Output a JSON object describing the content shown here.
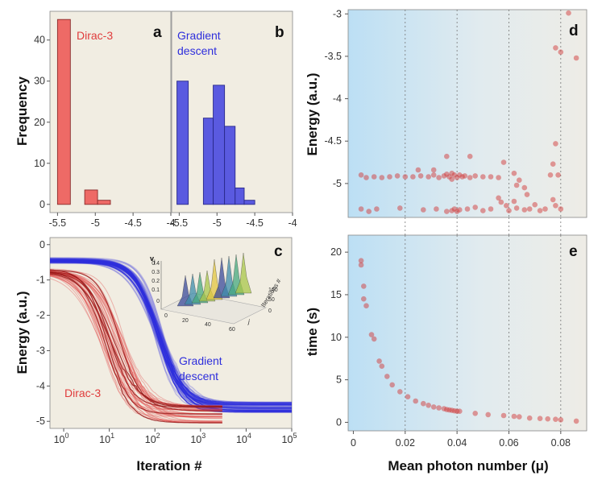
{
  "colors": {
    "dirac": "#e03c3c",
    "dirac_fill": "#ee6a66",
    "gradient": "#2e2edc",
    "gradient_fill": "#5a5ae0",
    "panel_bg": "#f1ede2",
    "scatter": "#d23c3c"
  },
  "chart_data": [
    {
      "panel": "a",
      "type": "bar",
      "title": "",
      "annotation": "Dirac-3",
      "xlabel": "",
      "ylabel": "Frequency",
      "xlim": [
        -5.6,
        -4.0
      ],
      "ylim": [
        -2,
        47
      ],
      "xticks": [
        "-5.5",
        "-5",
        "-4.5",
        "-4"
      ],
      "yticks": [
        "0",
        "10",
        "20",
        "30",
        "40"
      ],
      "bins": [
        {
          "x0": -5.5,
          "x1": -5.33,
          "count": 45
        },
        {
          "x0": -5.14,
          "x1": -4.97,
          "count": 3.5
        },
        {
          "x0": -4.97,
          "x1": -4.8,
          "count": 1
        }
      ]
    },
    {
      "panel": "b",
      "type": "bar",
      "annotation": [
        "Gradient",
        "descent"
      ],
      "xlim": [
        -5.6,
        -4.0
      ],
      "ylim": [
        -2,
        47
      ],
      "xticks": [
        "-5.5",
        "-5",
        "-4.5",
        "-4"
      ],
      "bins": [
        {
          "x0": -5.53,
          "x1": -5.38,
          "count": 30
        },
        {
          "x0": -5.18,
          "x1": -5.05,
          "count": 21
        },
        {
          "x0": -5.05,
          "x1": -4.9,
          "count": 29
        },
        {
          "x0": -4.9,
          "x1": -4.76,
          "count": 19
        },
        {
          "x0": -4.76,
          "x1": -4.64,
          "count": 4
        },
        {
          "x0": -4.64,
          "x1": -4.5,
          "count": 1
        }
      ]
    },
    {
      "panel": "c",
      "type": "line",
      "xscale": "log",
      "xlabel": "Iteration #",
      "ylabel": "Energy (a.u.)",
      "xlim": [
        0.5,
        100000
      ],
      "ylim": [
        -5.2,
        0.2
      ],
      "xtick_bases": [
        "10",
        "10",
        "10",
        "10",
        "10",
        "10"
      ],
      "xtick_exps": [
        "0",
        "1",
        "2",
        "3",
        "4",
        "5"
      ],
      "yticks": [
        "0",
        "-1",
        "-2",
        "-3",
        "-4",
        "-5"
      ],
      "series": [
        {
          "name": "Dirac-3",
          "start": -0.75,
          "midpoint": 12,
          "end_range": [
            -5.05,
            -4.55
          ],
          "ends_at": 3000
        },
        {
          "name": "Gradient descent",
          "start": -0.45,
          "midpoint": 120,
          "end_range": [
            -4.75,
            -4.45
          ],
          "ends_at": 100000
        }
      ],
      "annotations": [
        "Gradient",
        "descent",
        "Dirac-3"
      ],
      "inset": {
        "zlabel": "v",
        "zsub": "j",
        "zticks": [
          "0.4",
          "0.3",
          "0.2",
          "0.1",
          "0"
        ],
        "xticks": [
          "0",
          "20",
          "40",
          "60"
        ],
        "ylabel": "Iterations #",
        "yticks": [
          "100",
          "50",
          "0"
        ],
        "xlabel_short": "j"
      }
    },
    {
      "panel": "d",
      "type": "scatter",
      "xlabel": "",
      "ylabel": "Energy (a.u.)",
      "xlim": [
        -0.002,
        0.09
      ],
      "ylim": [
        -5.4,
        -2.95
      ],
      "yticks": [
        "-3",
        "-3.5",
        "-4",
        "-4.5",
        "-5"
      ],
      "points": [
        [
          0.003,
          -4.9
        ],
        [
          0.005,
          -4.93
        ],
        [
          0.008,
          -4.92
        ],
        [
          0.011,
          -4.93
        ],
        [
          0.014,
          -4.92
        ],
        [
          0.017,
          -4.91
        ],
        [
          0.02,
          -4.92
        ],
        [
          0.023,
          -4.92
        ],
        [
          0.026,
          -4.91
        ],
        [
          0.029,
          -4.92
        ],
        [
          0.031,
          -4.9
        ],
        [
          0.033,
          -4.93
        ],
        [
          0.035,
          -4.91
        ],
        [
          0.036,
          -4.89
        ],
        [
          0.037,
          -4.92
        ],
        [
          0.038,
          -4.88
        ],
        [
          0.038,
          -4.95
        ],
        [
          0.039,
          -4.9
        ],
        [
          0.04,
          -4.93
        ],
        [
          0.041,
          -4.9
        ],
        [
          0.042,
          -4.92
        ],
        [
          0.043,
          -4.91
        ],
        [
          0.045,
          -4.93
        ],
        [
          0.047,
          -4.91
        ],
        [
          0.05,
          -4.92
        ],
        [
          0.053,
          -4.92
        ],
        [
          0.056,
          -4.93
        ],
        [
          0.025,
          -4.84
        ],
        [
          0.031,
          -4.84
        ],
        [
          0.036,
          -4.68
        ],
        [
          0.045,
          -4.68
        ],
        [
          0.058,
          -4.75
        ],
        [
          0.062,
          -4.88
        ],
        [
          0.064,
          -4.96
        ],
        [
          0.066,
          -5.05
        ],
        [
          0.067,
          -5.13
        ],
        [
          0.063,
          -5.02
        ],
        [
          0.003,
          -5.3
        ],
        [
          0.006,
          -5.33
        ],
        [
          0.009,
          -5.3
        ],
        [
          0.018,
          -5.29
        ],
        [
          0.027,
          -5.31
        ],
        [
          0.032,
          -5.3
        ],
        [
          0.036,
          -5.33
        ],
        [
          0.038,
          -5.32
        ],
        [
          0.039,
          -5.3
        ],
        [
          0.04,
          -5.33
        ],
        [
          0.041,
          -5.31
        ],
        [
          0.044,
          -5.3
        ],
        [
          0.047,
          -5.28
        ],
        [
          0.05,
          -5.32
        ],
        [
          0.053,
          -5.3
        ],
        [
          0.056,
          -5.17
        ],
        [
          0.057,
          -5.22
        ],
        [
          0.059,
          -5.26
        ],
        [
          0.06,
          -5.32
        ],
        [
          0.062,
          -5.21
        ],
        [
          0.063,
          -5.29
        ],
        [
          0.066,
          -5.31
        ],
        [
          0.068,
          -5.3
        ],
        [
          0.07,
          -5.25
        ],
        [
          0.072,
          -5.32
        ],
        [
          0.074,
          -5.3
        ],
        [
          0.077,
          -5.19
        ],
        [
          0.078,
          -5.26
        ],
        [
          0.076,
          -4.9
        ],
        [
          0.077,
          -4.77
        ],
        [
          0.078,
          -4.53
        ],
        [
          0.079,
          -4.9
        ],
        [
          0.08,
          -5.3
        ],
        [
          0.078,
          -3.4
        ],
        [
          0.08,
          -3.45
        ],
        [
          0.086,
          -3.52
        ],
        [
          0.083,
          -2.99
        ]
      ]
    },
    {
      "panel": "e",
      "type": "scatter",
      "xlabel": "Mean photon number (μ)",
      "ylabel": "time (s)",
      "xlim": [
        -0.002,
        0.09
      ],
      "ylim": [
        -1,
        22
      ],
      "xticks": [
        "0",
        "0.02",
        "0.04",
        "0.06",
        "0.08"
      ],
      "yticks": [
        "20",
        "15",
        "10",
        "5",
        "0"
      ],
      "points": [
        [
          0.003,
          19
        ],
        [
          0.003,
          18.5
        ],
        [
          0.004,
          16
        ],
        [
          0.004,
          14.5
        ],
        [
          0.005,
          13.7
        ],
        [
          0.007,
          10.3
        ],
        [
          0.008,
          9.8
        ],
        [
          0.01,
          7.2
        ],
        [
          0.011,
          6.6
        ],
        [
          0.013,
          5.4
        ],
        [
          0.015,
          4.4
        ],
        [
          0.018,
          3.6
        ],
        [
          0.021,
          3.0
        ],
        [
          0.024,
          2.5
        ],
        [
          0.027,
          2.2
        ],
        [
          0.029,
          2.0
        ],
        [
          0.031,
          1.8
        ],
        [
          0.033,
          1.7
        ],
        [
          0.035,
          1.6
        ],
        [
          0.036,
          1.5
        ],
        [
          0.037,
          1.45
        ],
        [
          0.038,
          1.4
        ],
        [
          0.039,
          1.35
        ],
        [
          0.04,
          1.3
        ],
        [
          0.041,
          1.3
        ],
        [
          0.047,
          1.05
        ],
        [
          0.052,
          0.9
        ],
        [
          0.058,
          0.8
        ],
        [
          0.062,
          0.7
        ],
        [
          0.064,
          0.65
        ],
        [
          0.068,
          0.5
        ],
        [
          0.072,
          0.45
        ],
        [
          0.075,
          0.4
        ],
        [
          0.078,
          0.35
        ],
        [
          0.08,
          0.3
        ],
        [
          0.086,
          0.15
        ]
      ]
    }
  ],
  "panel_labels": {
    "a": "a",
    "b": "b",
    "c": "c",
    "d": "d",
    "e": "e"
  }
}
